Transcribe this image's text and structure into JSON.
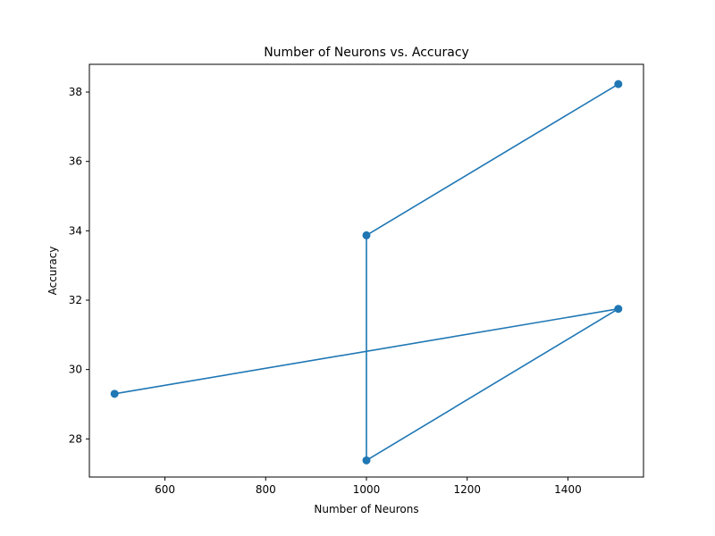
{
  "chart_data": {
    "type": "line",
    "title": "Number of Neurons vs. Accuracy",
    "xlabel": "Number of Neurons",
    "ylabel": "Accuracy",
    "xlim": [
      450,
      1550
    ],
    "ylim": [
      26.9,
      38.8
    ],
    "xticks": [
      600,
      800,
      1000,
      1200,
      1400
    ],
    "yticks": [
      28,
      30,
      32,
      34,
      36,
      38
    ],
    "grid": false,
    "series": [
      {
        "color": "#1f77b4",
        "marker": "circle",
        "x": [
          1500,
          1000,
          1000,
          1500,
          500
        ],
        "y": [
          38.23,
          33.87,
          27.38,
          31.75,
          29.3
        ]
      }
    ]
  }
}
